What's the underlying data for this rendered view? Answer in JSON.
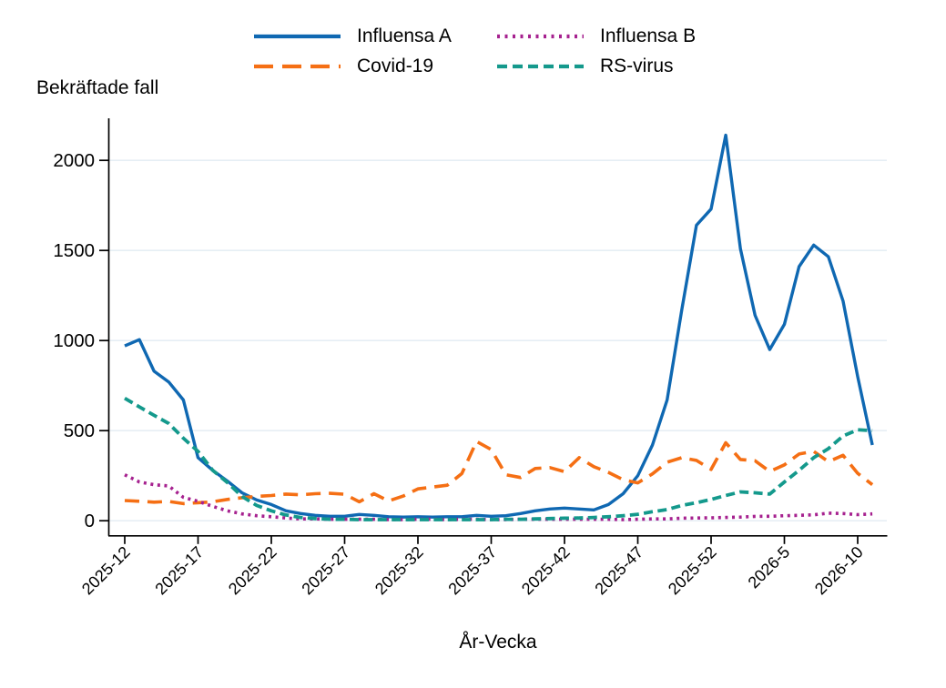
{
  "page": {
    "background": "#ffffff"
  },
  "labels": {
    "y_axis_title": "Bekräftade fall",
    "x_axis_title": "År-Vecka"
  },
  "legend": {
    "position": "top-center",
    "items": [
      {
        "id": "influensa-a",
        "label": "Influensa A",
        "color": "#0f68b2",
        "dash": ""
      },
      {
        "id": "influensa-b",
        "label": "Influensa B",
        "color": "#a6218f",
        "dash": "3 5.5"
      },
      {
        "id": "covid-19",
        "label": "Covid-19",
        "color": "#f56f14",
        "dash": "21 10"
      },
      {
        "id": "rs-virus",
        "label": "RS-virus",
        "color": "#14998c",
        "dash": "11 6"
      }
    ]
  },
  "chart_data": {
    "type": "line",
    "title": "",
    "ylabel": "Bekräftade fall",
    "xlabel": "År-Vecka",
    "grid": true,
    "legend_position": "top",
    "ylim": [
      0,
      2200
    ],
    "yticks": [
      0,
      500,
      1000,
      1500,
      2000
    ],
    "xtick_labels": [
      "2025-12",
      "2025-17",
      "2025-22",
      "2025-27",
      "2025-32",
      "2025-37",
      "2025-42",
      "2025-47",
      "2025-52",
      "2026-5",
      "2026-10"
    ],
    "xtick_positions": [
      0,
      5,
      10,
      15,
      20,
      25,
      30,
      35,
      40,
      45,
      50
    ],
    "categories": [
      "2025-12",
      "2025-13",
      "2025-14",
      "2025-15",
      "2025-16",
      "2025-17",
      "2025-18",
      "2025-19",
      "2025-20",
      "2025-21",
      "2025-22",
      "2025-23",
      "2025-24",
      "2025-25",
      "2025-26",
      "2025-27",
      "2025-28",
      "2025-29",
      "2025-30",
      "2025-31",
      "2025-32",
      "2025-33",
      "2025-34",
      "2025-35",
      "2025-36",
      "2025-37",
      "2025-38",
      "2025-39",
      "2025-40",
      "2025-41",
      "2025-42",
      "2025-43",
      "2025-44",
      "2025-45",
      "2025-46",
      "2025-47",
      "2025-48",
      "2025-49",
      "2025-50",
      "2025-51",
      "2025-52",
      "2026-1",
      "2026-2",
      "2026-3",
      "2026-4",
      "2026-5",
      "2026-6",
      "2026-7",
      "2026-8",
      "2026-9",
      "2026-10",
      "2026-11"
    ],
    "series": [
      {
        "name": "Influensa A",
        "color": "#0f68b2",
        "dash": [],
        "width": 3.4,
        "values": [
          970,
          1005,
          830,
          770,
          670,
          350,
          280,
          220,
          155,
          115,
          90,
          55,
          40,
          30,
          25,
          25,
          35,
          30,
          22,
          20,
          22,
          20,
          22,
          22,
          30,
          25,
          28,
          40,
          55,
          65,
          70,
          65,
          60,
          90,
          150,
          250,
          420,
          670,
          1170,
          1640,
          1730,
          2140,
          1510,
          1140,
          950,
          1090,
          1410,
          1530,
          1465,
          1220,
          800,
          420
        ]
      },
      {
        "name": "Covid-19",
        "color": "#f56f14",
        "dash": [
          16,
          9
        ],
        "width": 3.6,
        "values": [
          112,
          108,
          103,
          107,
          95,
          100,
          105,
          118,
          128,
          135,
          140,
          148,
          144,
          150,
          152,
          147,
          105,
          150,
          110,
          137,
          177,
          187,
          197,
          262,
          440,
          395,
          255,
          240,
          290,
          295,
          272,
          350,
          300,
          268,
          228,
          210,
          260,
          325,
          350,
          335,
          285,
          433,
          340,
          333,
          273,
          310,
          370,
          385,
          328,
          363,
          263,
          200
        ]
      },
      {
        "name": "Influensa B",
        "color": "#a6218f",
        "dash": [
          3,
          4.6
        ],
        "width": 3.6,
        "values": [
          255,
          215,
          200,
          193,
          130,
          108,
          80,
          55,
          38,
          28,
          22,
          15,
          10,
          10,
          8,
          8,
          8,
          8,
          6,
          6,
          8,
          8,
          6,
          8,
          8,
          6,
          6,
          8,
          8,
          8,
          8,
          8,
          8,
          8,
          6,
          8,
          10,
          10,
          14,
          15,
          16,
          18,
          20,
          24,
          25,
          28,
          30,
          33,
          42,
          40,
          34,
          38
        ]
      },
      {
        "name": "RS-virus",
        "color": "#14998c",
        "dash": [
          10,
          5.4
        ],
        "width": 3.8,
        "values": [
          680,
          632,
          585,
          540,
          458,
          385,
          280,
          212,
          135,
          85,
          55,
          32,
          18,
          12,
          8,
          8,
          6,
          6,
          6,
          6,
          6,
          6,
          6,
          6,
          6,
          6,
          8,
          8,
          10,
          12,
          14,
          15,
          18,
          22,
          28,
          36,
          50,
          62,
          85,
          100,
          118,
          140,
          160,
          155,
          148,
          215,
          280,
          350,
          400,
          470,
          505,
          500
        ]
      }
    ]
  }
}
